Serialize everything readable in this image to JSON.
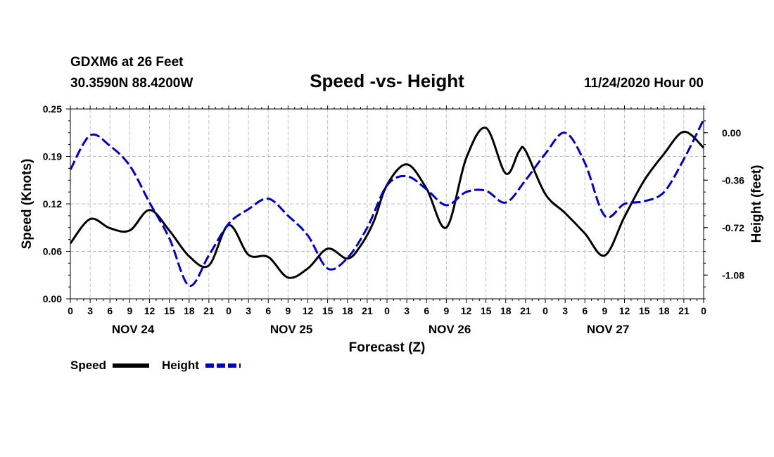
{
  "header": {
    "station": "GDXM6 at 26 Feet",
    "coords": "30.3590N 88.4200W",
    "title": "Speed -vs- Height",
    "datetime": "11/24/2020 Hour 00"
  },
  "legend": {
    "speed_label": "Speed",
    "height_label": "Height"
  },
  "colors": {
    "speed": "#000000",
    "height": "#0000cc",
    "grid": "#c0c0c0"
  },
  "chart_data": {
    "type": "line",
    "title": "Speed -vs- Height",
    "xlabel": "Forecast (Z)",
    "ylabel": "Speed (Knots)",
    "y2label": "Height (feet)",
    "x_range": [
      0,
      96
    ],
    "ylim": [
      0.0,
      0.25
    ],
    "y2lim": [
      -1.26,
      0.18
    ],
    "x_tick_labels": [
      "0",
      "3",
      "6",
      "9",
      "12",
      "15",
      "18",
      "21",
      "0",
      "3",
      "6",
      "9",
      "12",
      "15",
      "18",
      "21",
      "0",
      "3",
      "6",
      "9",
      "12",
      "15",
      "18",
      "21",
      "0",
      "3",
      "6",
      "9",
      "12",
      "15",
      "18",
      "21",
      "0"
    ],
    "y_ticks": [
      "0.00",
      "0.06",
      "0.12",
      "0.19",
      "0.25"
    ],
    "y2_ticks": [
      "0.00",
      "-0.36",
      "-0.72",
      "-1.08"
    ],
    "day_labels": [
      "NOV 24",
      "NOV 25",
      "NOV 26",
      "NOV 27"
    ],
    "grid": true,
    "series": [
      {
        "name": "Speed",
        "style": "solid",
        "axis": "left",
        "x": [
          0,
          3,
          6,
          9,
          12,
          15,
          18,
          21,
          24,
          27,
          30,
          33,
          36,
          39,
          42,
          44,
          46,
          48,
          51,
          54,
          57,
          60,
          63,
          66,
          68,
          69,
          72,
          75,
          78,
          81,
          84,
          87,
          90,
          93,
          96
        ],
        "values": [
          0.073,
          0.105,
          0.093,
          0.09,
          0.117,
          0.09,
          0.056,
          0.044,
          0.097,
          0.058,
          0.055,
          0.028,
          0.04,
          0.066,
          0.053,
          0.07,
          0.102,
          0.15,
          0.177,
          0.145,
          0.094,
          0.185,
          0.225,
          0.165,
          0.194,
          0.195,
          0.138,
          0.113,
          0.086,
          0.057,
          0.108,
          0.156,
          0.191,
          0.22,
          0.199
        ]
      },
      {
        "name": "Height",
        "style": "dashed",
        "axis": "right",
        "x": [
          0,
          3,
          6,
          9,
          12,
          15,
          18,
          21,
          24,
          27,
          30,
          33,
          36,
          39,
          42,
          45,
          48,
          51,
          54,
          57,
          60,
          63,
          66,
          69,
          72,
          75,
          78,
          81,
          84,
          87,
          90,
          93,
          96
        ],
        "values": [
          -0.28,
          -0.02,
          -0.1,
          -0.25,
          -0.53,
          -0.8,
          -1.16,
          -0.93,
          -0.69,
          -0.58,
          -0.5,
          -0.63,
          -0.78,
          -1.03,
          -0.95,
          -0.72,
          -0.4,
          -0.33,
          -0.43,
          -0.55,
          -0.45,
          -0.44,
          -0.53,
          -0.36,
          -0.16,
          0.0,
          -0.23,
          -0.63,
          -0.54,
          -0.52,
          -0.45,
          -0.2,
          0.1
        ]
      }
    ]
  }
}
